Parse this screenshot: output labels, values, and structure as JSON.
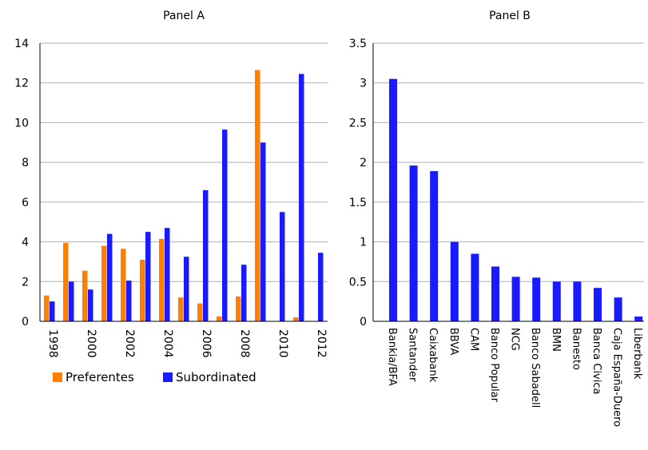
{
  "chart_data": [
    {
      "type": "bar",
      "title": "Panel A",
      "xlabel": "",
      "ylabel": "",
      "ylim": [
        0,
        14
      ],
      "yticks": [
        0,
        2,
        4,
        6,
        8,
        10,
        12,
        14
      ],
      "categories": [
        "1998",
        "1999",
        "2000",
        "2001",
        "2002",
        "2003",
        "2004",
        "2005",
        "2006",
        "2007",
        "2008",
        "2009",
        "2010",
        "2011",
        "2012"
      ],
      "xtick_labels": [
        "1998",
        "",
        "2000",
        "",
        "2002",
        "",
        "2004",
        "",
        "2006",
        "",
        "2008",
        "",
        "2010",
        "",
        "2012"
      ],
      "series": [
        {
          "name": "Preferentes",
          "color": "#ff7f00",
          "values": [
            1.3,
            3.95,
            2.55,
            3.8,
            3.65,
            3.1,
            4.15,
            1.2,
            0.9,
            0.25,
            1.25,
            12.65,
            0,
            0.2,
            0
          ]
        },
        {
          "name": "Subordinated",
          "color": "#1a1aff",
          "values": [
            1.0,
            2.0,
            1.6,
            4.4,
            2.05,
            4.5,
            4.7,
            3.25,
            6.6,
            9.65,
            2.85,
            9.0,
            5.5,
            12.45,
            3.45
          ]
        }
      ],
      "grid": true,
      "legend": "bottom"
    },
    {
      "type": "bar",
      "title": "Panel B",
      "xlabel": "",
      "ylabel": "",
      "ylim": [
        0,
        3.5
      ],
      "yticks": [
        "0",
        "0.5",
        "1",
        "1.5",
        "2",
        "2.5",
        "3",
        "3.5"
      ],
      "categories": [
        "Bankia/BFA",
        "Santander",
        "Caixabank",
        "BBVA",
        "CAM",
        "Banco Popular",
        "NCG",
        "Banco Sabadell",
        "BMN",
        "Banesto",
        "Banca Civica",
        "Caja España-Duero",
        "Liberbank"
      ],
      "series": [
        {
          "color": "#1a1aff",
          "values": [
            3.05,
            1.96,
            1.89,
            1.0,
            0.85,
            0.69,
            0.56,
            0.55,
            0.5,
            0.5,
            0.42,
            0.3,
            0.06
          ]
        }
      ],
      "grid": true
    }
  ]
}
